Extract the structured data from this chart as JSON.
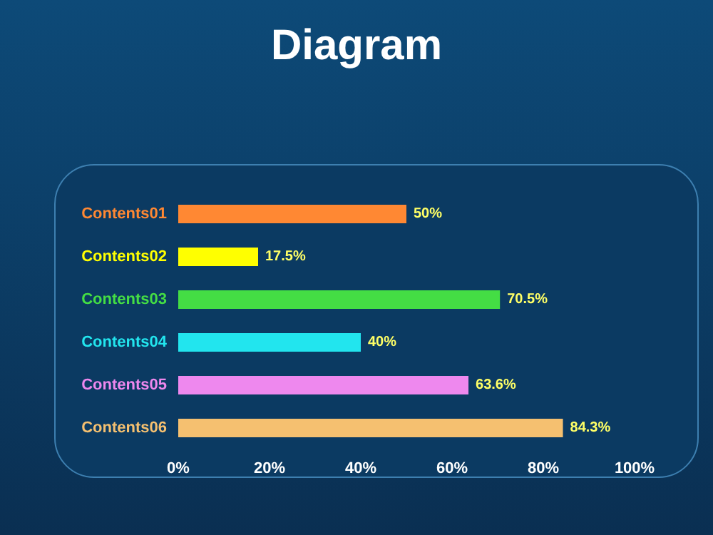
{
  "chart_data": {
    "type": "bar",
    "orientation": "horizontal",
    "title": "Diagram",
    "categories": [
      "Contents01",
      "Contents02",
      "Contents03",
      "Contents04",
      "Contents05",
      "Contents06"
    ],
    "values": [
      50,
      17.5,
      70.5,
      40,
      63.6,
      84.3
    ],
    "colors": [
      "#ff8833",
      "#ffff00",
      "#44dd44",
      "#22e5ee",
      "#ee88ee",
      "#f5c070"
    ],
    "value_labels": [
      "50%",
      "17.5%",
      "70.5%",
      "40%",
      "63.6%",
      "84.3%"
    ],
    "xlim": [
      0,
      100
    ],
    "xticks": [
      {
        "value": 0,
        "label": "0%"
      },
      {
        "value": 20,
        "label": "20%"
      },
      {
        "value": 40,
        "label": "40%"
      },
      {
        "value": 60,
        "label": "60%"
      },
      {
        "value": 80,
        "label": "80%"
      },
      {
        "value": 100,
        "label": "100%"
      }
    ],
    "grid": false
  }
}
